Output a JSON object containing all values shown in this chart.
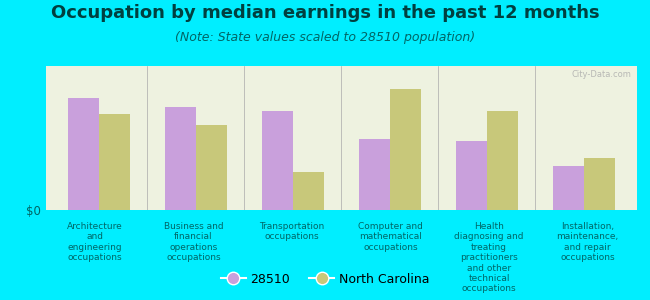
{
  "title": "Occupation by median earnings in the past 12 months",
  "subtitle": "(Note: State values scaled to 28510 population)",
  "categories": [
    "Architecture\nand\nengineering\noccupations",
    "Business and\nfinancial\noperations\noccupations",
    "Transportation\noccupations",
    "Computer and\nmathematical\noccupations",
    "Health\ndiagnosing and\ntreating\npractitioners\nand other\ntechnical\noccupations",
    "Installation,\nmaintenance,\nand repair\noccupations"
  ],
  "values_28510": [
    0.82,
    0.75,
    0.72,
    0.52,
    0.5,
    0.32
  ],
  "values_nc": [
    0.7,
    0.62,
    0.28,
    0.88,
    0.72,
    0.38
  ],
  "color_28510": "#c9a0dc",
  "color_nc": "#c8c87a",
  "background_color": "#00eeff",
  "plot_bg_color": "#eef2e0",
  "bar_width": 0.32,
  "ylabel": "$0",
  "legend_28510": "28510",
  "legend_nc": "North Carolina",
  "title_fontsize": 13,
  "subtitle_fontsize": 9,
  "label_fontsize": 6.5,
  "legend_fontsize": 9,
  "title_color": "#004040",
  "subtitle_color": "#006666",
  "label_color": "#006666"
}
